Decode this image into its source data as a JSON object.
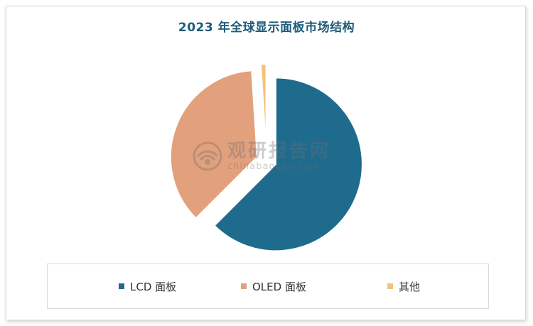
{
  "chart_data": {
    "type": "pie",
    "title": "2023 年全球显示面板市场结构",
    "series": [
      {
        "name": "LCD 面板",
        "value": 62.5,
        "color": "#1e6b8e"
      },
      {
        "name": "OLED 面板",
        "value": 36.5,
        "color": "#e3a07c"
      },
      {
        "name": "其他",
        "value": 1.0,
        "color": "#f5c27a"
      }
    ],
    "legend_position": "bottom"
  },
  "watermark": {
    "main": "观研报告网",
    "sub": "chinabaogao.com"
  }
}
